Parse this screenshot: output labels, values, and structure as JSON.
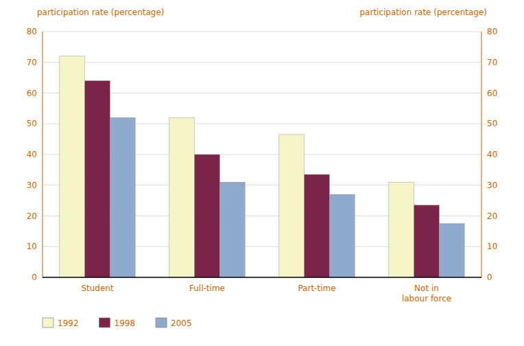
{
  "chart_data": {
    "type": "bar",
    "y_label": "participation rate (percentage)",
    "y2_label": "participation rate (percentage)",
    "categories": [
      "Student",
      "Full-time",
      "Part-time",
      "Not in\nlabour force"
    ],
    "series": [
      {
        "name": "1992",
        "color": "#f5f5c8",
        "values": [
          72,
          52,
          46.5,
          31
        ]
      },
      {
        "name": "1998",
        "color": "#7b2548",
        "values": [
          64,
          40,
          33.5,
          23.5
        ]
      },
      {
        "name": "2005",
        "color": "#8eaacc",
        "values": [
          52,
          31,
          27,
          17.5
        ]
      }
    ],
    "ylim": [
      0,
      80
    ],
    "yticks": [
      0,
      10,
      20,
      30,
      40,
      50,
      60,
      70,
      80
    ],
    "y2lim": [
      0,
      80
    ],
    "y2ticks": [
      0,
      10,
      20,
      30,
      40,
      50,
      60,
      70,
      80
    ],
    "grid": true,
    "legend": "bottom"
  }
}
